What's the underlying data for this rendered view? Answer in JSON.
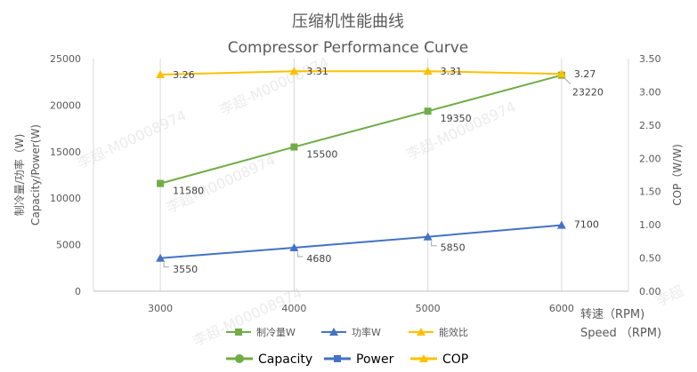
{
  "chart_data": {
    "type": "line",
    "title": "压缩机性能曲线",
    "subtitle": "Compressor Performance Curve",
    "x": [
      3000,
      4000,
      5000,
      6000
    ],
    "xlabel_cn": "转速（RPM)",
    "xlabel_en": "Speed （RPM)",
    "ylabel_left": [
      "制冷量/功率（W)",
      "Capacity/Power(W)"
    ],
    "ylabel_right": "COP（W/W)",
    "ylim_left": [
      0,
      25000
    ],
    "yticks_left": [
      0,
      5000,
      10000,
      15000,
      20000,
      25000
    ],
    "ylim_right": [
      0,
      3.5
    ],
    "yticks_right": [
      "0.00",
      "0.50",
      "1.00",
      "1.50",
      "2.00",
      "2.50",
      "3.00",
      "3.50"
    ],
    "xticks": [
      "3000",
      "4000",
      "5000",
      "6000"
    ],
    "series": [
      {
        "name": "制冷量W",
        "axis": "left",
        "marker": "square",
        "color": "#70ad47",
        "values": [
          11580,
          15500,
          19350,
          23220
        ],
        "labels": [
          "11580",
          "15500",
          "19350",
          "23220"
        ]
      },
      {
        "name": "功率W",
        "axis": "left",
        "marker": "triangle",
        "color": "#4472c4",
        "values": [
          3550,
          4680,
          5850,
          7100
        ],
        "labels": [
          "3550",
          "4680",
          "5850",
          "7100"
        ]
      },
      {
        "name": "能效比",
        "axis": "right",
        "marker": "triangle",
        "color": "#ffc000",
        "values": [
          3.26,
          3.31,
          3.31,
          3.27
        ],
        "labels": [
          "3.26",
          "3.31",
          "3.31",
          "3.27"
        ]
      }
    ],
    "legend": {
      "position": "bottom",
      "entries": [
        "制冷量W",
        "功率W",
        "能效比"
      ]
    },
    "legend2": [
      {
        "label": "Capacity",
        "color": "#70ad47",
        "marker": "circle"
      },
      {
        "label": "Power",
        "color": "#4472c4",
        "marker": "square"
      },
      {
        "label": "COP",
        "color": "#ffc000",
        "marker": "triangle"
      }
    ],
    "grid": "vertical"
  },
  "watermarks": [
    "李超-M00008974",
    "李超-M00008974",
    "李超-M00008974",
    "李超-M00008974",
    "李超-M00008974",
    "李超"
  ]
}
